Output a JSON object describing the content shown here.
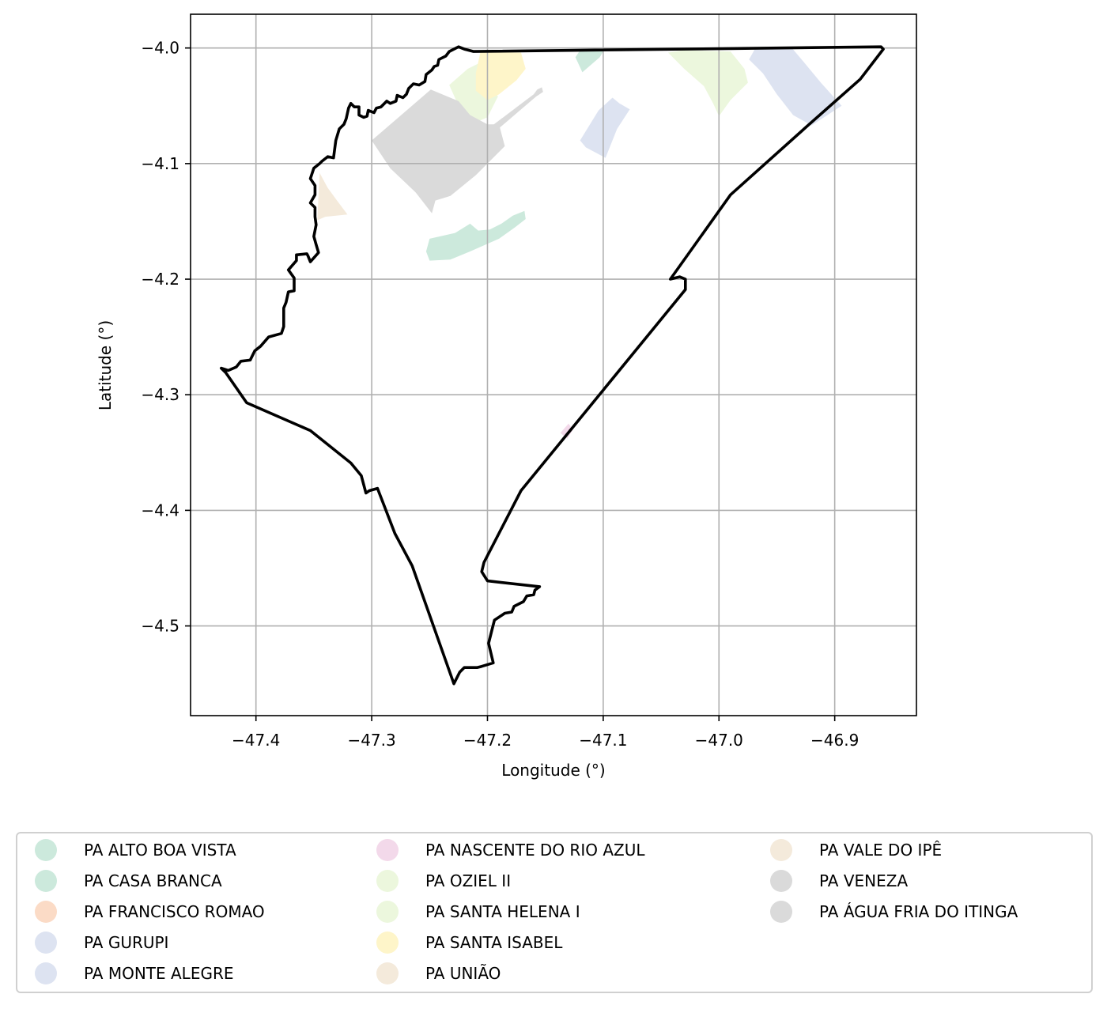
{
  "chart_data": {
    "type": "map",
    "xlabel": "Longitude (°)",
    "ylabel": "Latitude (°)",
    "xlim": [
      -47.4565,
      -46.8294
    ],
    "ylim": [
      -4.5776,
      -3.9708
    ],
    "grid": true,
    "x_ticks": [
      -47.4,
      -47.3,
      -47.2,
      -47.1,
      -47.0,
      -46.9
    ],
    "x_tick_labels": [
      "−47.4",
      "−47.3",
      "−47.2",
      "−47.1",
      "−47.0",
      "−46.9"
    ],
    "y_ticks": [
      -4.0,
      -4.1,
      -4.2,
      -4.3,
      -4.4,
      -4.5
    ],
    "y_tick_labels": [
      "−4.0",
      "−4.1",
      "−4.2",
      "−4.3",
      "−4.4",
      "−4.5"
    ],
    "legend_placement": "below",
    "boundary": {
      "stroke": "#000000",
      "coords": [
        [
          -47.233,
          -4.003
        ],
        [
          -47.225,
          -3.999
        ],
        [
          -47.22,
          -4.001
        ],
        [
          -47.212,
          -4.003
        ],
        [
          -46.86,
          -3.999
        ],
        [
          -46.858,
          -4.001
        ],
        [
          -46.878,
          -4.027
        ],
        [
          -46.922,
          -4.066
        ],
        [
          -46.99,
          -4.127
        ],
        [
          -47.042,
          -4.2
        ],
        [
          -47.034,
          -4.198
        ],
        [
          -47.029,
          -4.2
        ],
        [
          -47.029,
          -4.209
        ],
        [
          -47.171,
          -4.383
        ],
        [
          -47.203,
          -4.445
        ],
        [
          -47.205,
          -4.453
        ],
        [
          -47.2,
          -4.461
        ],
        [
          -47.155,
          -4.466
        ],
        [
          -47.159,
          -4.469
        ],
        [
          -47.16,
          -4.473
        ],
        [
          -47.166,
          -4.474
        ],
        [
          -47.169,
          -4.479
        ],
        [
          -47.177,
          -4.483
        ],
        [
          -47.179,
          -4.488
        ],
        [
          -47.185,
          -4.489
        ],
        [
          -47.194,
          -4.495
        ],
        [
          -47.196,
          -4.503
        ],
        [
          -47.199,
          -4.515
        ],
        [
          -47.195,
          -4.532
        ],
        [
          -47.205,
          -4.535
        ],
        [
          -47.209,
          -4.536
        ],
        [
          -47.22,
          -4.536
        ],
        [
          -47.224,
          -4.54
        ],
        [
          -47.229,
          -4.55
        ],
        [
          -47.265,
          -4.448
        ],
        [
          -47.28,
          -4.42
        ],
        [
          -47.295,
          -4.381
        ],
        [
          -47.302,
          -4.383
        ],
        [
          -47.305,
          -4.385
        ],
        [
          -47.309,
          -4.37
        ],
        [
          -47.318,
          -4.359
        ],
        [
          -47.353,
          -4.331
        ],
        [
          -47.408,
          -4.307
        ],
        [
          -47.426,
          -4.281
        ],
        [
          -47.43,
          -4.277
        ],
        [
          -47.424,
          -4.279
        ],
        [
          -47.417,
          -4.276
        ],
        [
          -47.413,
          -4.271
        ],
        [
          -47.405,
          -4.27
        ],
        [
          -47.401,
          -4.262
        ],
        [
          -47.396,
          -4.258
        ],
        [
          -47.389,
          -4.25
        ],
        [
          -47.378,
          -4.247
        ],
        [
          -47.376,
          -4.241
        ],
        [
          -47.376,
          -4.23
        ],
        [
          -47.376,
          -4.225
        ],
        [
          -47.374,
          -4.22
        ],
        [
          -47.372,
          -4.211
        ],
        [
          -47.367,
          -4.21
        ],
        [
          -47.367,
          -4.199
        ],
        [
          -47.372,
          -4.192
        ],
        [
          -47.365,
          -4.184
        ],
        [
          -47.365,
          -4.179
        ],
        [
          -47.356,
          -4.178
        ],
        [
          -47.355,
          -4.18
        ],
        [
          -47.353,
          -4.185
        ],
        [
          -47.346,
          -4.177
        ],
        [
          -47.348,
          -4.17
        ],
        [
          -47.35,
          -4.163
        ],
        [
          -47.348,
          -4.153
        ],
        [
          -47.349,
          -4.146
        ],
        [
          -47.349,
          -4.138
        ],
        [
          -47.353,
          -4.134
        ],
        [
          -47.349,
          -4.127
        ],
        [
          -47.349,
          -4.119
        ],
        [
          -47.353,
          -4.113
        ],
        [
          -47.35,
          -4.104
        ],
        [
          -47.345,
          -4.1
        ],
        [
          -47.343,
          -4.098
        ],
        [
          -47.338,
          -4.094
        ],
        [
          -47.333,
          -4.095
        ],
        [
          -47.331,
          -4.08
        ],
        [
          -47.328,
          -4.07
        ],
        [
          -47.324,
          -4.066
        ],
        [
          -47.322,
          -4.061
        ],
        [
          -47.32,
          -4.052
        ],
        [
          -47.318,
          -4.048
        ],
        [
          -47.315,
          -4.051
        ],
        [
          -47.311,
          -4.051
        ],
        [
          -47.311,
          -4.058
        ],
        [
          -47.307,
          -4.06
        ],
        [
          -47.304,
          -4.059
        ],
        [
          -47.303,
          -4.054
        ],
        [
          -47.298,
          -4.056
        ],
        [
          -47.296,
          -4.052
        ],
        [
          -47.292,
          -4.051
        ],
        [
          -47.289,
          -4.048
        ],
        [
          -47.287,
          -4.046
        ],
        [
          -47.284,
          -4.048
        ],
        [
          -47.279,
          -4.046
        ],
        [
          -47.278,
          -4.041
        ],
        [
          -47.273,
          -4.043
        ],
        [
          -47.27,
          -4.04
        ],
        [
          -47.268,
          -4.035
        ],
        [
          -47.264,
          -4.031
        ],
        [
          -47.259,
          -4.032
        ],
        [
          -47.254,
          -4.029
        ],
        [
          -47.253,
          -4.023
        ],
        [
          -47.248,
          -4.019
        ],
        [
          -47.246,
          -4.016
        ],
        [
          -47.243,
          -4.015
        ],
        [
          -47.242,
          -4.01
        ],
        [
          -47.24,
          -4.009
        ],
        [
          -47.236,
          -4.007
        ],
        [
          -47.233,
          -4.003
        ]
      ]
    },
    "series": [
      {
        "name": "PA ALTO BOA VISTA",
        "color": "#cce9dc",
        "polygons": [
          [
            [
              -47.25,
              -4.165
            ],
            [
              -47.228,
              -4.16
            ],
            [
              -47.215,
              -4.152
            ],
            [
              -47.208,
              -4.158
            ],
            [
              -47.198,
              -4.157
            ],
            [
              -47.188,
              -4.152
            ],
            [
              -47.178,
              -4.145
            ],
            [
              -47.168,
              -4.141
            ],
            [
              -47.167,
              -4.148
            ],
            [
              -47.176,
              -4.155
            ],
            [
              -47.19,
              -4.165
            ],
            [
              -47.215,
              -4.176
            ],
            [
              -47.232,
              -4.183
            ],
            [
              -47.25,
              -4.184
            ],
            [
              -47.253,
              -4.176
            ]
          ]
        ]
      },
      {
        "name": "PA CASA BRANCA",
        "color": "#cce9dc",
        "polygons": [
          [
            [
              -47.118,
              -4.021
            ],
            [
              -47.103,
              -4.008
            ],
            [
              -47.1,
              -4.003
            ],
            [
              -47.11,
              -4.001
            ],
            [
              -47.12,
              -4.002
            ],
            [
              -47.124,
              -4.008
            ]
          ]
        ]
      },
      {
        "name": "PA FRANCISCO ROMAO",
        "color": "#fbdbc6",
        "polygons": []
      },
      {
        "name": "PA GURUPI",
        "color": "#dde3f1",
        "polygons": [
          [
            [
              -46.969,
              -4.001
            ],
            [
              -46.937,
              -4.0
            ],
            [
              -46.926,
              -4.013
            ],
            [
              -46.912,
              -4.03
            ],
            [
              -46.894,
              -4.05
            ],
            [
              -46.92,
              -4.067
            ],
            [
              -46.936,
              -4.058
            ],
            [
              -46.95,
              -4.04
            ],
            [
              -46.962,
              -4.022
            ],
            [
              -46.974,
              -4.01
            ]
          ]
        ]
      },
      {
        "name": "PA MONTE ALEGRE",
        "color": "#dde3f1",
        "polygons": [
          [
            [
              -47.12,
              -4.08
            ],
            [
              -47.104,
              -4.054
            ],
            [
              -47.092,
              -4.043
            ],
            [
              -47.086,
              -4.048
            ],
            [
              -47.077,
              -4.053
            ],
            [
              -47.088,
              -4.07
            ],
            [
              -47.098,
              -4.095
            ],
            [
              -47.115,
              -4.086
            ]
          ]
        ]
      },
      {
        "name": "PA NASCENTE DO RIO AZUL",
        "color": "#f3d9ea",
        "polygons": [
          [
            [
              -47.137,
              -4.333
            ],
            [
              -47.13,
              -4.325
            ],
            [
              -47.126,
              -4.33
            ],
            [
              -47.131,
              -4.338
            ]
          ]
        ]
      },
      {
        "name": "PA OZIEL II",
        "color": "#ecf7dd",
        "polygons": [
          [
            [
              -47.031,
              -4.002
            ],
            [
              -46.99,
              -4.003
            ],
            [
              -46.978,
              -4.018
            ],
            [
              -46.975,
              -4.03
            ],
            [
              -46.99,
              -4.045
            ],
            [
              -47.0,
              -4.059
            ],
            [
              -47.005,
              -4.048
            ],
            [
              -47.013,
              -4.033
            ],
            [
              -47.03,
              -4.018
            ],
            [
              -47.044,
              -4.004
            ]
          ]
        ]
      },
      {
        "name": "PA SANTA HELENA I",
        "color": "#ecf7dd",
        "polygons": [
          [
            [
              -47.233,
              -4.032
            ],
            [
              -47.217,
              -4.018
            ],
            [
              -47.205,
              -4.012
            ],
            [
              -47.2,
              -4.025
            ],
            [
              -47.191,
              -4.042
            ],
            [
              -47.2,
              -4.06
            ],
            [
              -47.212,
              -4.065
            ],
            [
              -47.225,
              -4.05
            ]
          ]
        ]
      },
      {
        "name": "PA SANTA ISABEL",
        "color": "#fef5c9",
        "polygons": [
          [
            [
              -47.206,
              -4.003
            ],
            [
              -47.171,
              -4.004
            ],
            [
              -47.167,
              -4.018
            ],
            [
              -47.175,
              -4.028
            ],
            [
              -47.19,
              -4.04
            ],
            [
              -47.2,
              -4.045
            ],
            [
              -47.21,
              -4.037
            ],
            [
              -47.21,
              -4.022
            ]
          ]
        ]
      },
      {
        "name": "PA UNIÃO",
        "color": "#f4eadb",
        "polygons": [
          [
            [
              -47.345,
              -4.108
            ],
            [
              -47.338,
              -4.121
            ],
            [
              -47.33,
              -4.132
            ],
            [
              -47.321,
              -4.144
            ],
            [
              -47.34,
              -4.146
            ],
            [
              -47.347,
              -4.149
            ]
          ]
        ]
      },
      {
        "name": "PA VALE DO IPÊ",
        "color": "#f4eadb",
        "polygons": []
      },
      {
        "name": "PA VENEZA",
        "color": "#dadada",
        "polygons": [
          [
            [
              -47.249,
              -4.036
            ],
            [
              -47.3,
              -4.08
            ],
            [
              -47.284,
              -4.104
            ],
            [
              -47.262,
              -4.125
            ],
            [
              -47.248,
              -4.143
            ],
            [
              -47.245,
              -4.132
            ],
            [
              -47.232,
              -4.128
            ],
            [
              -47.21,
              -4.11
            ],
            [
              -47.185,
              -4.085
            ],
            [
              -47.19,
              -4.066
            ],
            [
              -47.2,
              -4.066
            ],
            [
              -47.215,
              -4.058
            ],
            [
              -47.225,
              -4.046
            ]
          ]
        ]
      },
      {
        "name": "PA ÁGUA FRIA DO ITINGA",
        "color": "#dadada",
        "polygons": [
          [
            [
              -47.197,
              -4.068
            ],
            [
              -47.16,
              -4.04
            ],
            [
              -47.157,
              -4.036
            ],
            [
              -47.153,
              -4.034
            ],
            [
              -47.152,
              -4.038
            ],
            [
              -47.158,
              -4.042
            ],
            [
              -47.193,
              -4.072
            ]
          ]
        ]
      }
    ]
  }
}
